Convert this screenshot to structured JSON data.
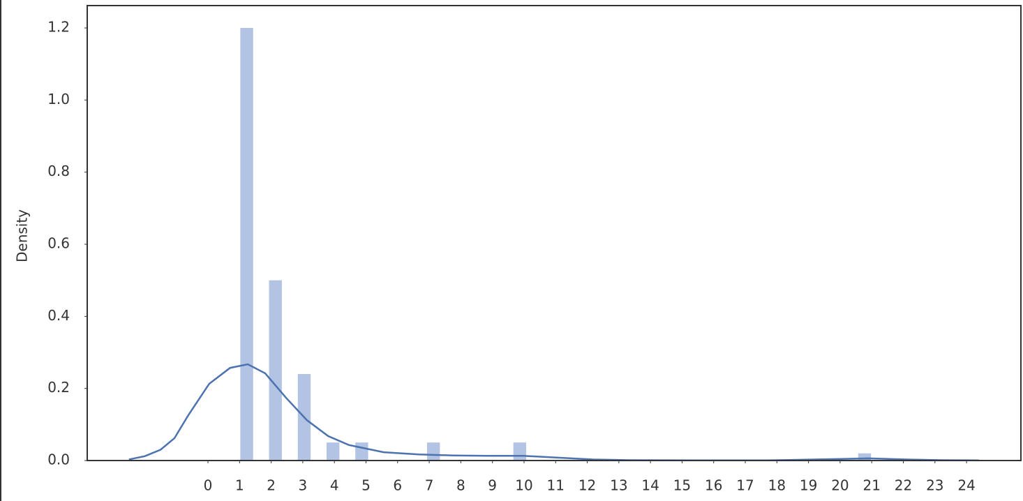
{
  "chart_data": {
    "type": "histogram",
    "y_label": "Density",
    "bins": [
      1,
      1.45,
      1.91,
      2.36,
      2.82,
      3.27,
      3.73,
      4.18,
      4.64,
      5.09,
      5.55,
      6,
      6.45,
      6.91,
      7.36,
      7.82,
      8.27,
      8.73,
      9.18,
      9.64,
      10.09,
      10.55,
      11,
      11.45,
      11.91,
      12.36,
      12.82,
      13.27,
      13.73,
      14.18,
      14.64,
      15.09,
      15.55,
      16,
      16.45,
      16.91,
      17.36,
      17.82,
      18.27,
      18.73,
      19.18,
      19.64,
      20.09,
      20.55,
      21
    ],
    "values": [
      1.2,
      0,
      0.5,
      0,
      0.24,
      0,
      0.05,
      0,
      0.05,
      0,
      0,
      0,
      0,
      0.05,
      0,
      0,
      0,
      0,
      0,
      0.05,
      0,
      0,
      0,
      0,
      0,
      0,
      0,
      0,
      0,
      0,
      0,
      0,
      0,
      0,
      0,
      0,
      0,
      0,
      0,
      0,
      0,
      0,
      0,
      0.02
    ],
    "color": "#b3c3e3",
    "kde": {
      "color": "#4c72b0",
      "x": [
        -2.5,
        -2,
        -1.5,
        -1.06,
        -0.62,
        0.04,
        0.7,
        1.26,
        1.81,
        2.47,
        3.13,
        3.8,
        4.46,
        5.56,
        6.67,
        7.77,
        8.87,
        9.98,
        11.08,
        12.19,
        13.3,
        15.5,
        17.7,
        19.9,
        20.9,
        22.1,
        23.2,
        24.4
      ],
      "values": [
        0.003,
        0.012,
        0.03,
        0.062,
        0.126,
        0.213,
        0.257,
        0.267,
        0.242,
        0.174,
        0.112,
        0.068,
        0.043,
        0.023,
        0.017,
        0.014,
        0.013,
        0.013,
        0.008,
        0.003,
        0.001,
        0.0005,
        0.0005,
        0.004,
        0.006,
        0.003,
        0.001,
        0.0003
      ]
    },
    "xlim": [
      -3.82,
      25.72
    ],
    "ylim": [
      0,
      1.262
    ],
    "xticks": [
      0,
      1,
      2,
      3,
      4,
      5,
      6,
      7,
      8,
      9,
      10,
      11,
      12,
      13,
      14,
      15,
      16,
      17,
      18,
      19,
      20,
      21,
      22,
      23,
      24
    ],
    "yticks": [
      {
        "value": 0,
        "label": "0.0"
      },
      {
        "value": 0.2,
        "label": "0.2"
      },
      {
        "value": 0.4,
        "label": "0.4"
      },
      {
        "value": 0.6,
        "label": "0.6"
      },
      {
        "value": 0.8,
        "label": "0.8"
      },
      {
        "value": 1,
        "label": "1.0"
      },
      {
        "value": 1.2,
        "label": "1.2"
      }
    ]
  }
}
